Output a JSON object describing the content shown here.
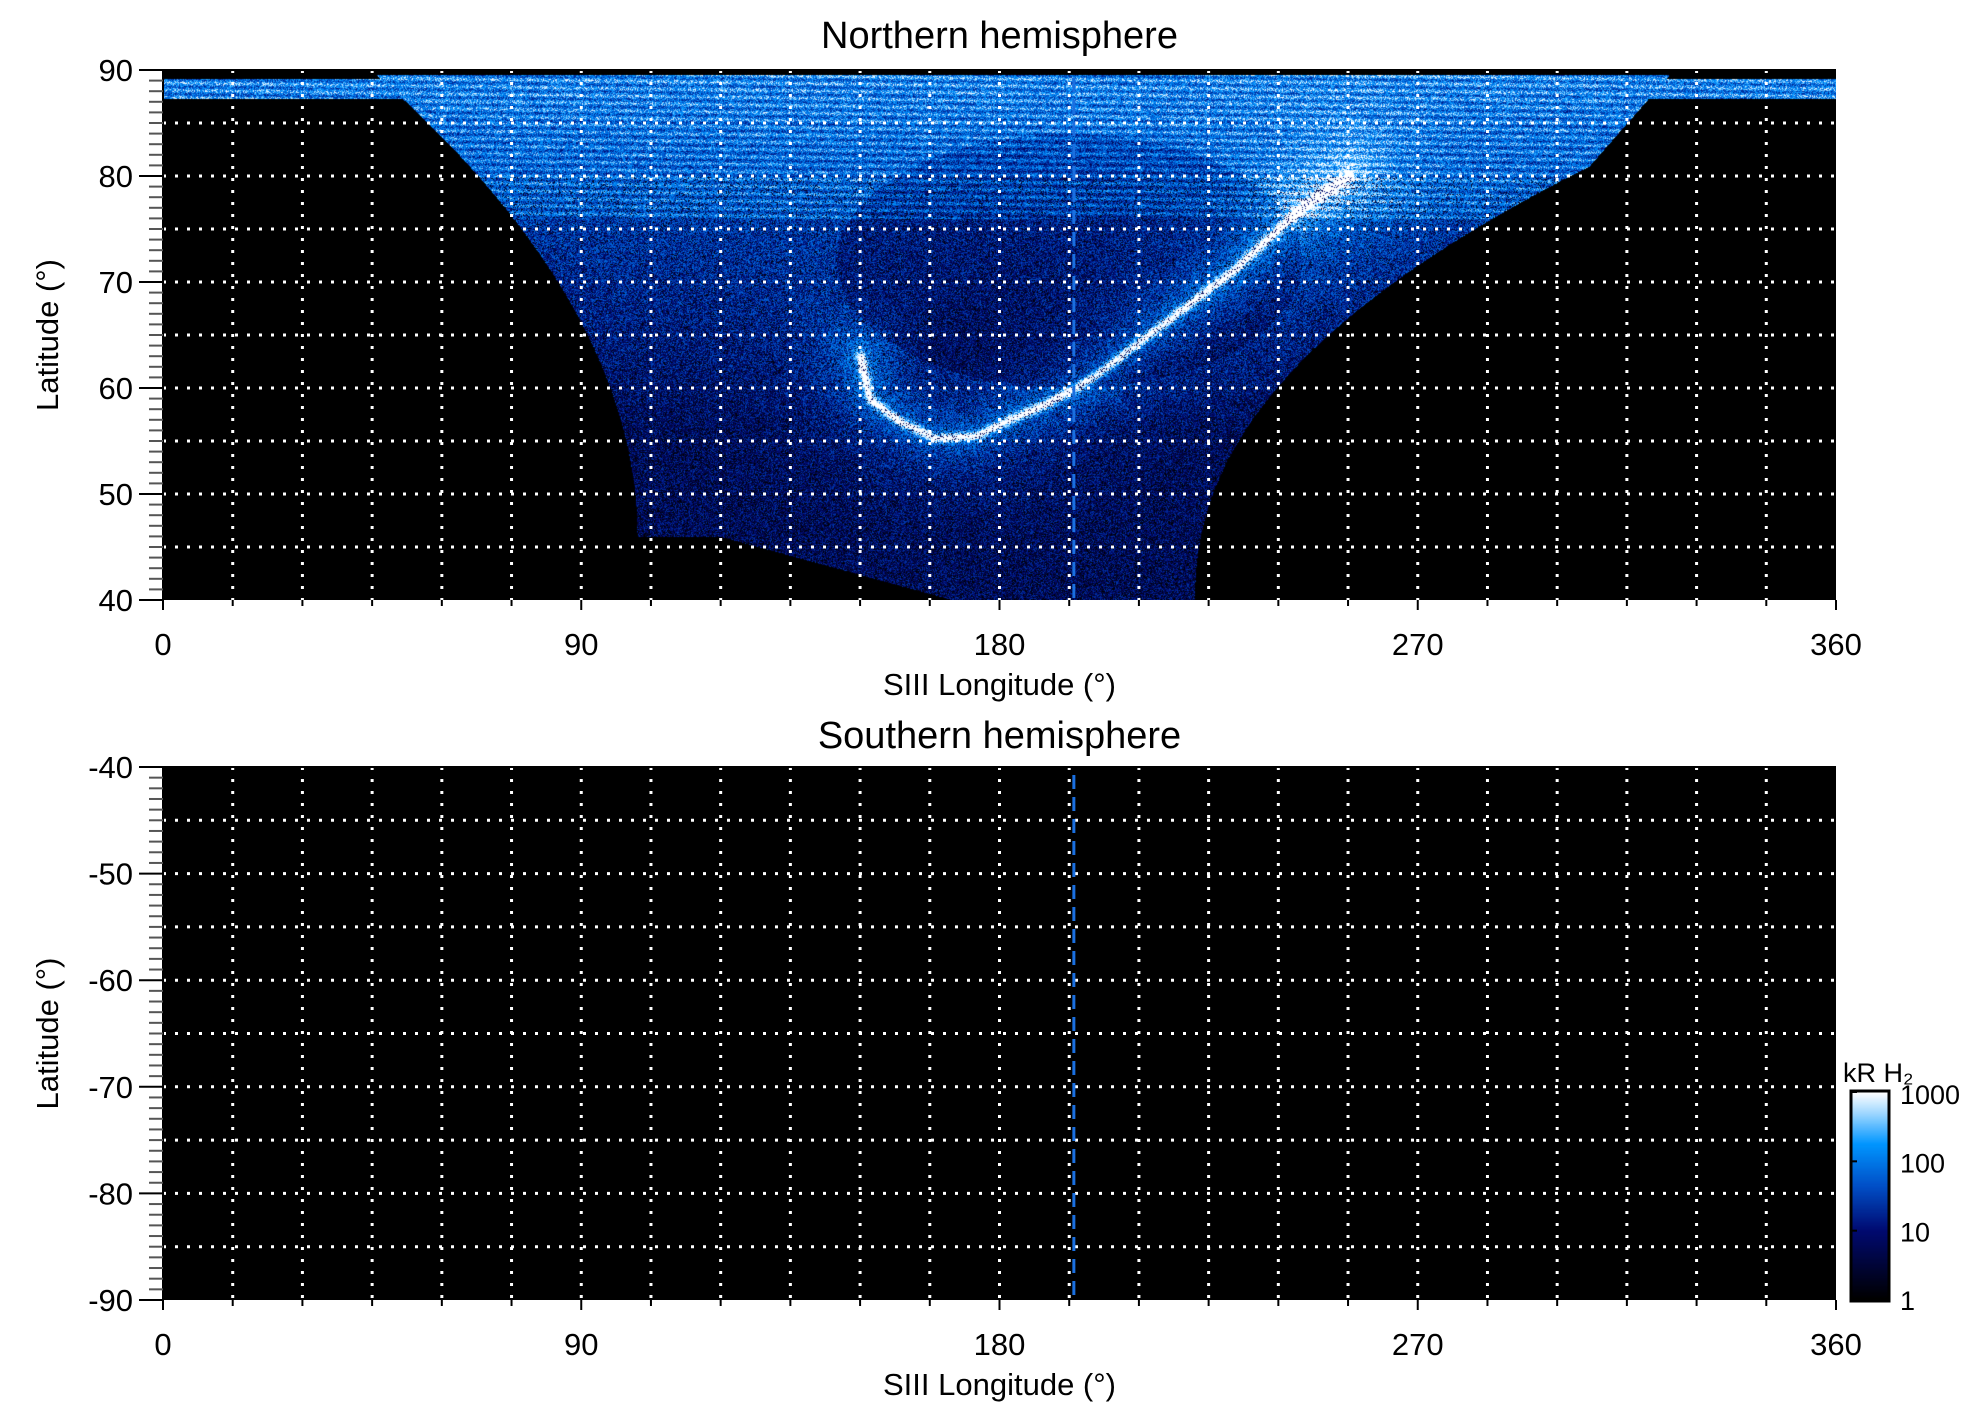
{
  "chart_data": [
    {
      "type": "heatmap",
      "title": "Northern hemisphere",
      "xlabel": "SIII Longitude (°)",
      "ylabel": "Latitude (°)",
      "xlim": [
        0,
        360
      ],
      "ylim": [
        40,
        90
      ],
      "xticks": [
        0,
        90,
        180,
        270,
        360
      ],
      "yticks": [
        40,
        50,
        60,
        70,
        80,
        90
      ],
      "grid": "dotted white, every 15° longitude and 5° latitude",
      "content": "auroral emission: bright main oval arc from ~150° lon / 63° lat down to ~55° lat near 170° lon and up to ~80° lat near 255° lon; diffuse emission poleward; no data (black) outside ~100°–330° lon below ~87° lat",
      "dashed_meridian_lon": 196
    },
    {
      "type": "heatmap",
      "title": "Southern hemisphere",
      "xlabel": "SIII Longitude (°)",
      "ylabel": "Latitude (°)",
      "xlim": [
        0,
        360
      ],
      "ylim": [
        -90,
        -40
      ],
      "xticks": [
        0,
        90,
        180,
        270,
        360
      ],
      "yticks": [
        -90,
        -80,
        -70,
        -60,
        -50,
        -40
      ],
      "grid": "dotted white, every 15° longitude and 5° latitude",
      "content": "no emission (all black)",
      "dashed_meridian_lon": 196
    }
  ],
  "colorbar": {
    "label": "kR H₂",
    "scale": "log",
    "range": [
      1,
      1000
    ],
    "ticks": [
      "1",
      "10",
      "100",
      "1000"
    ],
    "colors": [
      "#000000",
      "#000a70",
      "#0050c8",
      "#0096ff",
      "#a0d8ff",
      "#ffffff"
    ]
  }
}
